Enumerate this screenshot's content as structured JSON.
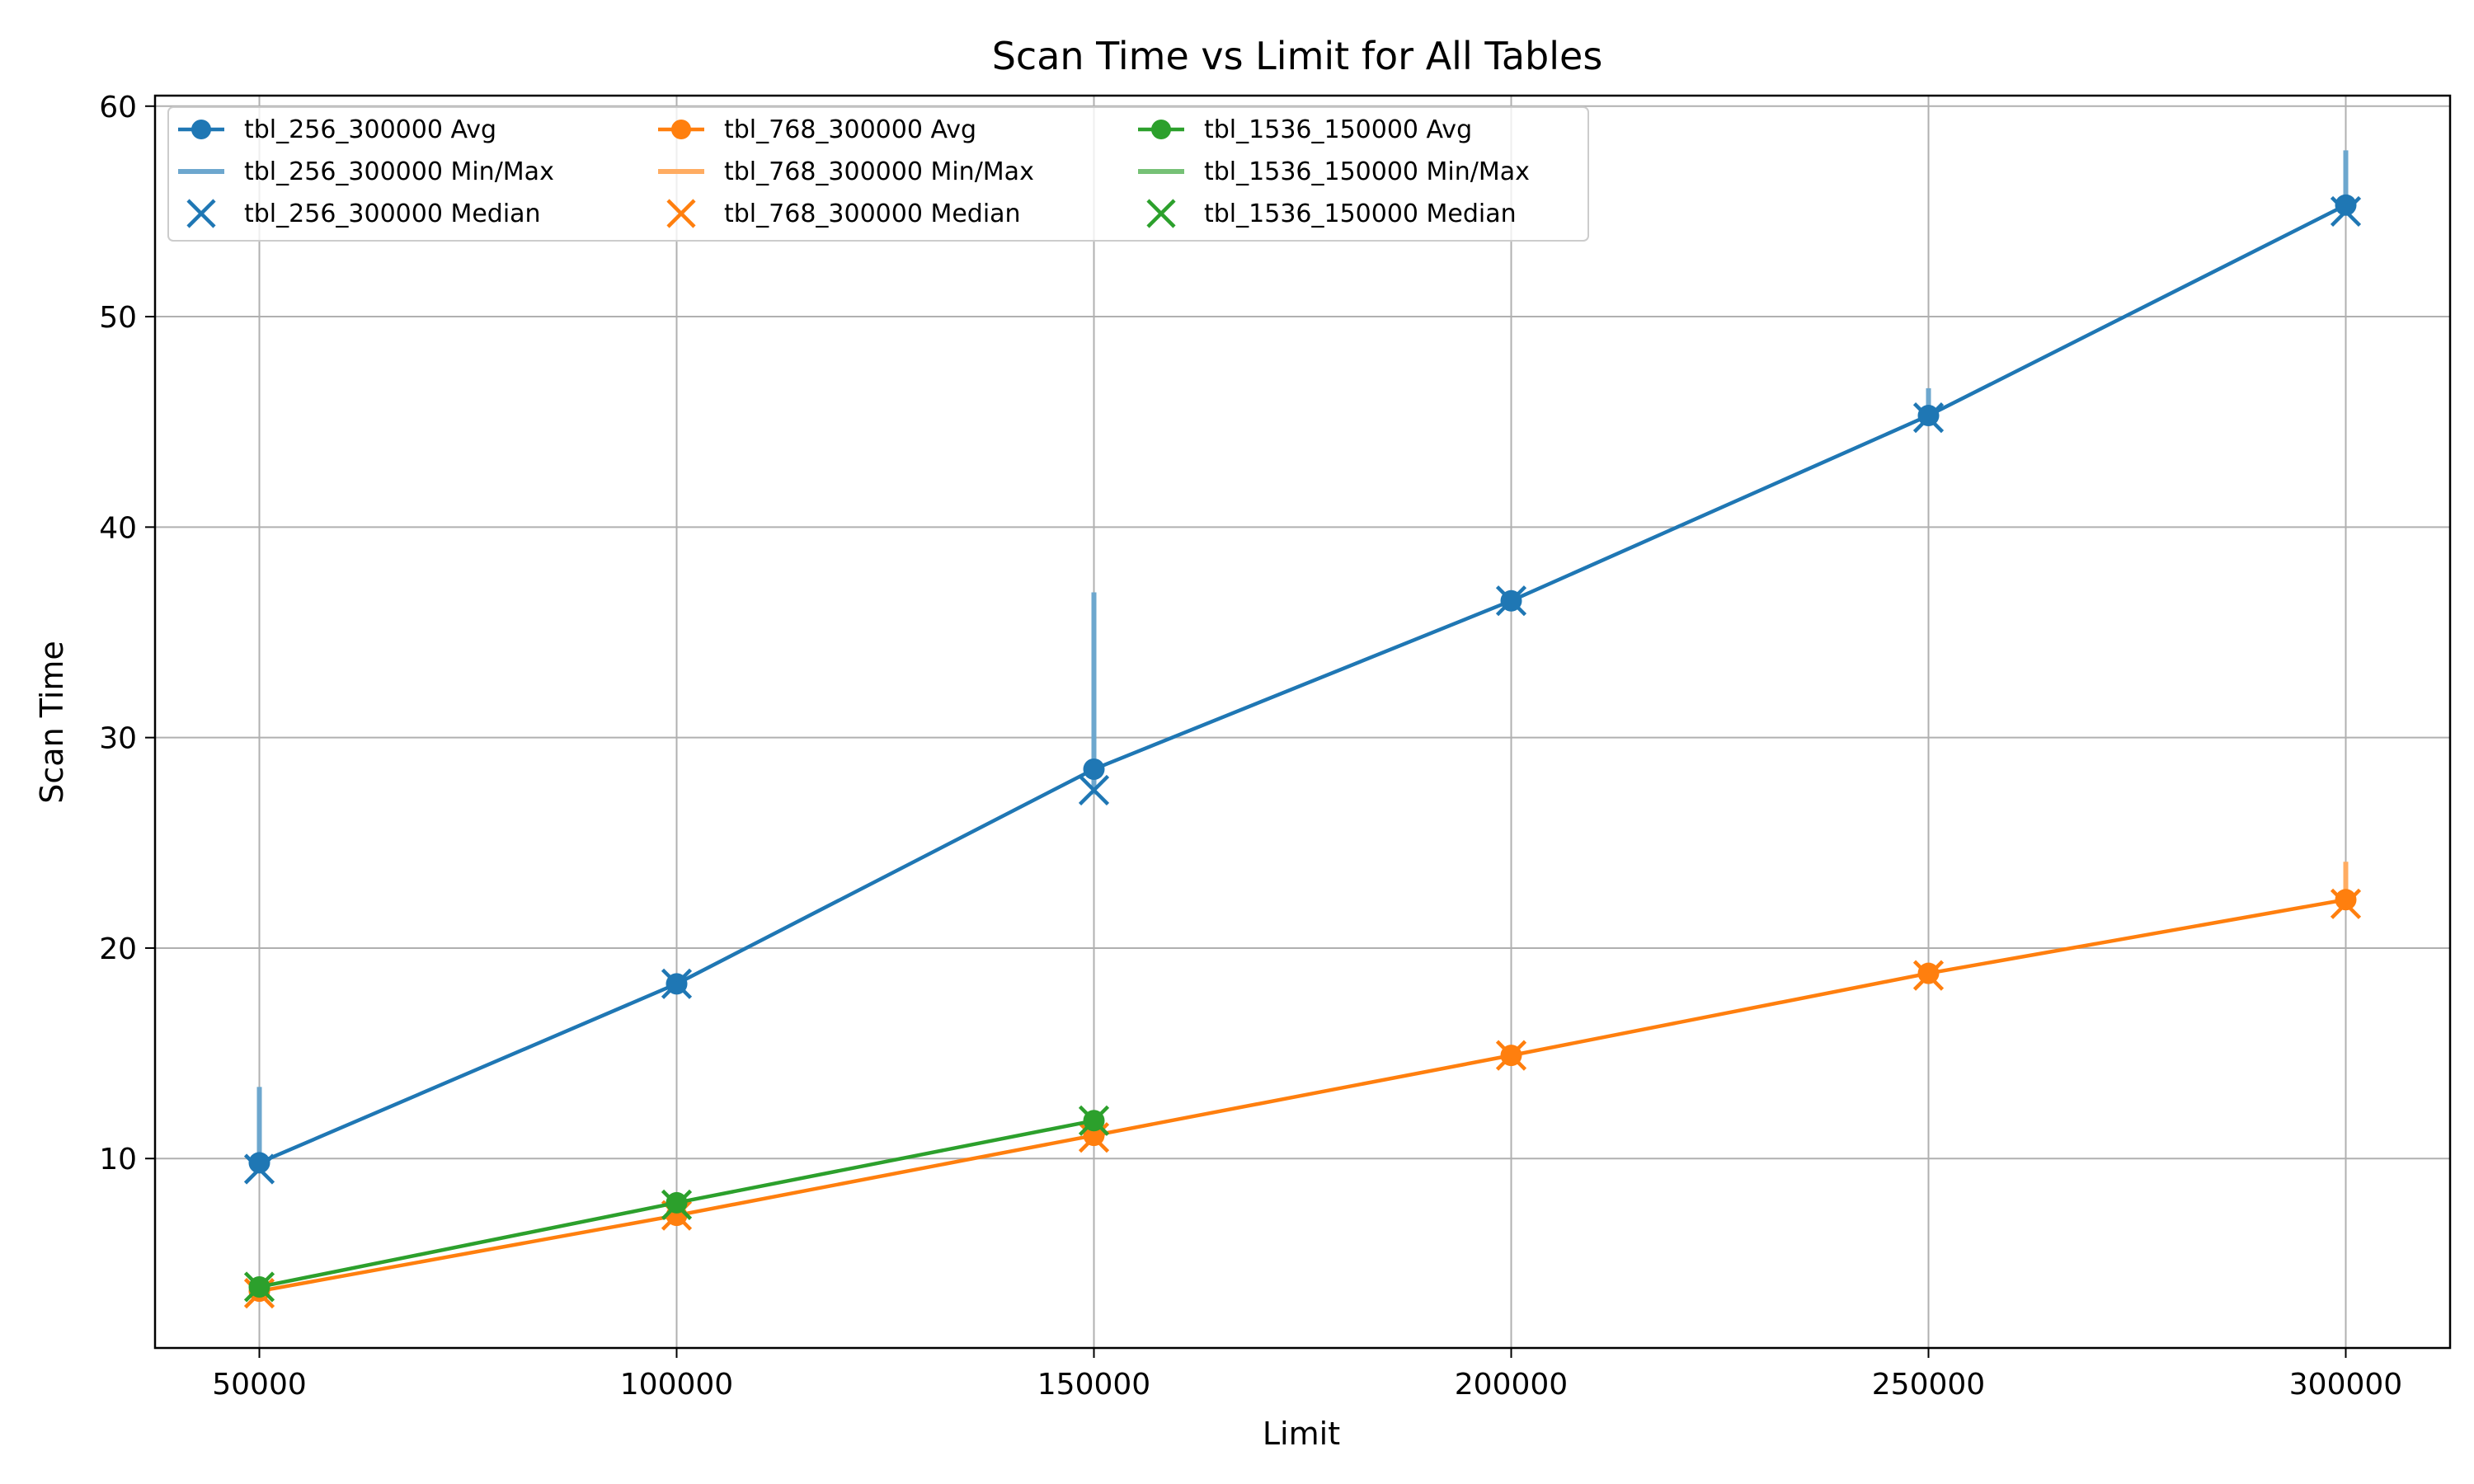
{
  "chart_data": {
    "type": "line",
    "title": "Scan Time vs Limit for All Tables",
    "xlabel": "Limit",
    "ylabel": "Scan Time",
    "xlim": [
      37500,
      312500
    ],
    "ylim": [
      1.0,
      60.5
    ],
    "xticks": [
      50000,
      100000,
      150000,
      200000,
      250000,
      300000
    ],
    "yticks": [
      10,
      20,
      30,
      40,
      50,
      60
    ],
    "grid": true,
    "legend_position": "top-left",
    "legend_ncol": 3,
    "series": [
      {
        "name": "tbl_256_300000",
        "color": "#1f77b4",
        "x": [
          50000,
          100000,
          150000,
          200000,
          250000,
          300000
        ],
        "avg": [
          9.8,
          18.3,
          28.5,
          36.5,
          45.3,
          55.3
        ],
        "median": [
          9.5,
          18.3,
          27.5,
          36.5,
          45.2,
          55.0
        ],
        "min": [
          9.5,
          18.0,
          27.3,
          36.2,
          44.9,
          54.8
        ],
        "max": [
          13.4,
          18.5,
          36.9,
          36.7,
          46.6,
          57.9
        ],
        "legend_avg": "tbl_256_300000 Avg",
        "legend_minmax": "tbl_256_300000 Min/Max",
        "legend_median": "tbl_256_300000 Median"
      },
      {
        "name": "tbl_768_300000",
        "color": "#ff7f0e",
        "x": [
          50000,
          100000,
          150000,
          200000,
          250000,
          300000
        ],
        "avg": [
          3.7,
          7.3,
          11.1,
          14.9,
          18.8,
          22.3
        ],
        "median": [
          3.6,
          7.3,
          11.0,
          14.9,
          18.7,
          22.1
        ],
        "min": [
          3.3,
          7.1,
          10.8,
          14.6,
          18.5,
          21.8
        ],
        "max": [
          3.9,
          7.6,
          11.3,
          15.1,
          19.3,
          24.1
        ],
        "legend_avg": "tbl_768_300000 Avg",
        "legend_minmax": "tbl_768_300000 Min/Max",
        "legend_median": "tbl_768_300000 Median"
      },
      {
        "name": "tbl_1536_150000",
        "color": "#2ca02c",
        "x": [
          50000,
          100000,
          150000
        ],
        "avg": [
          3.9,
          7.9,
          11.8
        ],
        "median": [
          3.9,
          7.8,
          11.8
        ],
        "min": [
          3.6,
          7.6,
          11.6
        ],
        "max": [
          4.2,
          8.1,
          12.0
        ],
        "legend_avg": "tbl_1536_150000 Avg",
        "legend_minmax": "tbl_1536_150000 Min/Max",
        "legend_median": "tbl_1536_150000 Median"
      }
    ]
  }
}
